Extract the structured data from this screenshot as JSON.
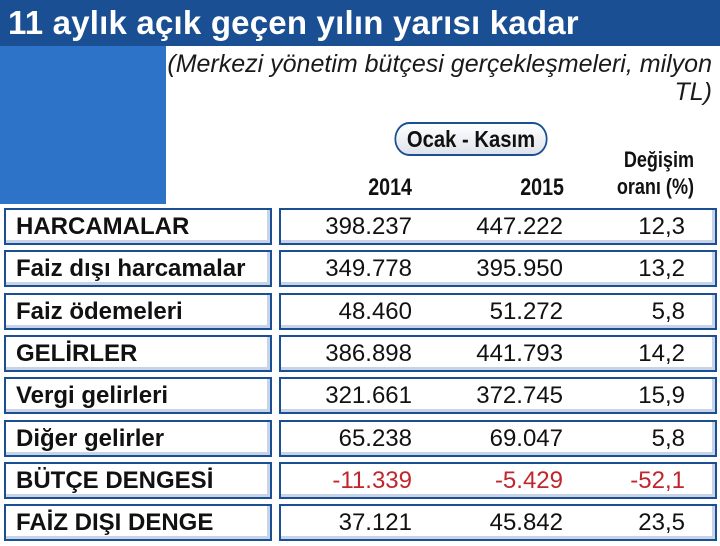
{
  "title": "11 aylık açık geçen yılın yarısı kadar",
  "subtitle": "(Merkezi yönetim bütçesi gerçekleşmeleri, milyon TL)",
  "period_label": "Ocak - Kasım",
  "columns": {
    "y2014": "2014",
    "y2015": "2015",
    "change": "Değişim oranı (%)"
  },
  "colors": {
    "title_bar": "#1a4f93",
    "side_block": "#2d74c8",
    "negative_values": "#c0262b"
  },
  "chart_data": {
    "type": "table",
    "title": "11 aylık açık geçen yılın yarısı kadar",
    "subtitle": "(Merkezi yönetim bütçesi gerçekleşmeleri, milyon TL)",
    "columns": [
      "2014",
      "2015",
      "Değişim oranı (%)"
    ],
    "rows": [
      {
        "label": "HARCAMALAR",
        "v2014": "398.237",
        "v2015": "447.222",
        "change": "12,3"
      },
      {
        "label": "Faiz dışı harcamalar",
        "v2014": "349.778",
        "v2015": "395.950",
        "change": "13,2"
      },
      {
        "label": "Faiz ödemeleri",
        "v2014": "48.460",
        "v2015": "51.272",
        "change": "5,8"
      },
      {
        "label": "GELİRLER",
        "v2014": "386.898",
        "v2015": "441.793",
        "change": "14,2"
      },
      {
        "label": "Vergi gelirleri",
        "v2014": "321.661",
        "v2015": "372.745",
        "change": "15,9"
      },
      {
        "label": "Diğer gelirler",
        "v2014": "65.238",
        "v2015": "69.047",
        "change": "5,8"
      },
      {
        "label": "BÜTÇE DENGESİ",
        "v2014": "-11.339",
        "v2015": "-5.429",
        "change": "-52,1"
      },
      {
        "label": "FAİZ DIŞI DENGE",
        "v2014": "37.121",
        "v2015": "45.842",
        "change": "23,5"
      }
    ]
  }
}
